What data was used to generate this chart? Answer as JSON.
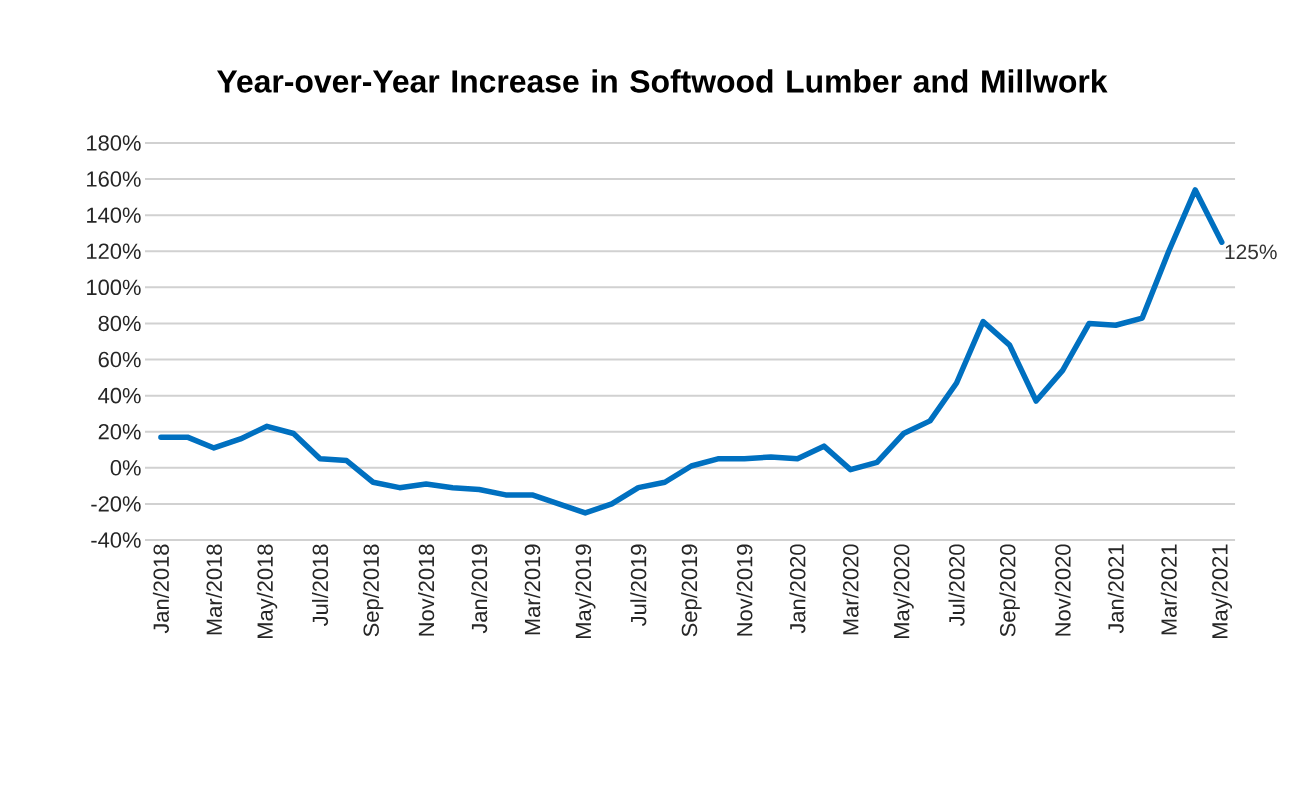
{
  "chart_data": {
    "type": "line",
    "title": "Year-over-Year Increase in Softwood Lumber and Millwork",
    "categories": [
      "Jan/2018",
      null,
      "Mar/2018",
      null,
      "May/2018",
      null,
      "Jul/2018",
      null,
      "Sep/2018",
      null,
      "Nov/2018",
      null,
      "Jan/2019",
      null,
      "Mar/2019",
      null,
      "May/2019",
      null,
      "Jul/2019",
      null,
      "Sep/2019",
      null,
      "Nov/2019",
      null,
      "Jan/2020",
      null,
      "Mar/2020",
      null,
      "May/2020",
      null,
      "Jul/2020",
      null,
      "Sep/2020",
      null,
      "Nov/2020",
      null,
      "Jan/2021",
      null,
      "Mar/2021",
      null,
      "May/2021"
    ],
    "series": [
      {
        "color": "#0070c0",
        "values": [
          17,
          17,
          11,
          16,
          23,
          19,
          5,
          4,
          -8,
          -11,
          -9,
          -11,
          -12,
          -15,
          -15,
          -20,
          -25,
          -20,
          -11,
          -8,
          1,
          5,
          5,
          6,
          5,
          12,
          -1,
          3,
          19,
          26,
          47,
          81,
          68,
          37,
          54,
          80,
          79,
          83,
          120,
          154,
          125
        ]
      }
    ],
    "ylim": [
      -40,
      180
    ],
    "yticks": [
      {
        "value": -40,
        "label": "-40%"
      },
      {
        "value": -20,
        "label": "-20%"
      },
      {
        "value": 0,
        "label": "0%"
      },
      {
        "value": 20,
        "label": "20%"
      },
      {
        "value": 40,
        "label": "40%"
      },
      {
        "value": 60,
        "label": "60%"
      },
      {
        "value": 80,
        "label": "80%"
      },
      {
        "value": 100,
        "label": "100%"
      },
      {
        "value": 120,
        "label": "120%"
      },
      {
        "value": 140,
        "label": "140%"
      },
      {
        "value": 160,
        "label": "160%"
      },
      {
        "value": 180,
        "label": "180%"
      }
    ],
    "grid": "y",
    "annotations": [
      {
        "text": "125%",
        "x": "May/2021",
        "y": 125
      }
    ]
  }
}
